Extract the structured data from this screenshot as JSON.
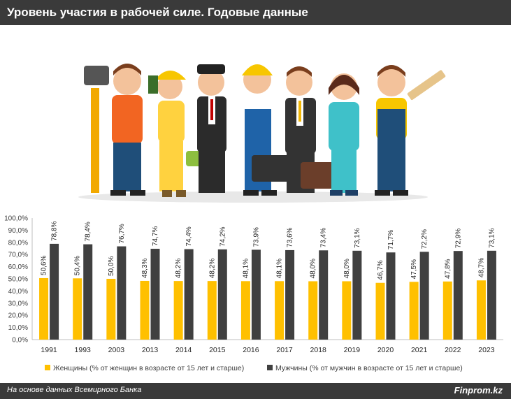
{
  "header": {
    "title": "Уровень участия в рабочей силе. Годовые данные"
  },
  "illustration": {
    "name": "workers-group-illustration"
  },
  "footer": {
    "source": "На основе данных Всемирного Банка",
    "brand": "Finprom.kz"
  },
  "colors": {
    "women": "#ffc000",
    "men": "#404040",
    "header_bg": "#3a3a3a"
  },
  "chart_data": {
    "type": "bar",
    "categories": [
      "1991",
      "1993",
      "2003",
      "2013",
      "2014",
      "2015",
      "2016",
      "2017",
      "2018",
      "2019",
      "2020",
      "2021",
      "2022",
      "2023"
    ],
    "series": [
      {
        "name": "Женщины (% от женщин в возрасте от 15 лет и старше)",
        "color": "#ffc000",
        "values": [
          50.6,
          50.4,
          50.0,
          48.3,
          48.2,
          48.2,
          48.1,
          48.1,
          48.0,
          48.0,
          46.7,
          47.5,
          47.8,
          48.7
        ],
        "labels": [
          "50,6%",
          "50,4%",
          "50,0%",
          "48,3%",
          "48,2%",
          "48,2%",
          "48,1%",
          "48,1%",
          "48,0%",
          "48,0%",
          "46,7%",
          "47,5%",
          "47,8%",
          "48,7%"
        ]
      },
      {
        "name": "Мужчины (% от мужчин в возрасте от 15 лет и старше)",
        "color": "#404040",
        "values": [
          78.8,
          78.4,
          76.7,
          74.7,
          74.4,
          74.2,
          73.9,
          73.6,
          73.4,
          73.1,
          71.7,
          72.2,
          72.9,
          73.1
        ],
        "labels": [
          "78,8%",
          "78,4%",
          "76,7%",
          "74,7%",
          "74,4%",
          "74,2%",
          "73,9%",
          "73,6%",
          "73,4%",
          "73,1%",
          "71,7%",
          "72,2%",
          "72,9%",
          "73,1%"
        ]
      }
    ],
    "ylim": [
      0,
      100
    ],
    "yticks": [
      "0,0%",
      "10,0%",
      "20,0%",
      "30,0%",
      "40,0%",
      "50,0%",
      "60,0%",
      "70,0%",
      "80,0%",
      "90,0%",
      "100,0%"
    ],
    "grid": false,
    "legend": "bottom"
  }
}
